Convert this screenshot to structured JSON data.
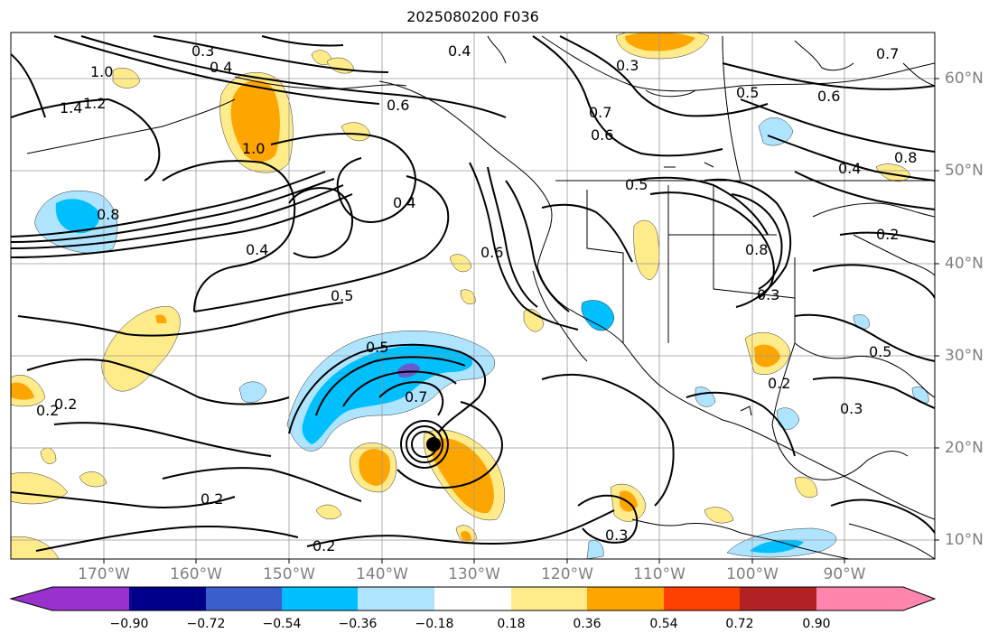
{
  "title": "2025080200 F036",
  "lon_labels": [
    "170°W",
    "160°W",
    "150°W",
    "140°W",
    "130°W",
    "120°W",
    "110°W",
    "100°W",
    "90°W"
  ],
  "lat_labels": [
    "60°N",
    "50°N",
    "40°N",
    "30°N",
    "20°N",
    "10°N"
  ],
  "contour_labels": [
    {
      "text": "0.3"
    },
    {
      "text": "0.4"
    },
    {
      "text": "1.0"
    },
    {
      "text": "1.2"
    },
    {
      "text": "1.4"
    },
    {
      "text": "0.4"
    },
    {
      "text": "0.3"
    },
    {
      "text": "0.6"
    },
    {
      "text": "0.7"
    },
    {
      "text": "0.5"
    },
    {
      "text": "0.6"
    },
    {
      "text": "0.6"
    },
    {
      "text": "1.0"
    },
    {
      "text": "0.7"
    },
    {
      "text": "0.5"
    },
    {
      "text": "0.4"
    },
    {
      "text": "0.8"
    },
    {
      "text": "0.4"
    },
    {
      "text": "0.5"
    },
    {
      "text": "0.6"
    },
    {
      "text": "0.8"
    },
    {
      "text": "0.3"
    },
    {
      "text": "0.5"
    },
    {
      "text": "0.7"
    },
    {
      "text": "0.4"
    },
    {
      "text": "0.8"
    },
    {
      "text": "0.2"
    },
    {
      "text": "0.5"
    },
    {
      "text": "0.2"
    },
    {
      "text": "0.2"
    },
    {
      "text": "0.3"
    },
    {
      "text": "0.2"
    },
    {
      "text": "0.2"
    },
    {
      "text": "0.3"
    },
    {
      "text": "0.2"
    }
  ],
  "colorbar": {
    "colors": [
      "#9932CC",
      "#00008B",
      "#3A5FCD",
      "#00BFFF",
      "#AEE4FF",
      "#FFFFFF",
      "#FFEB8A",
      "#FFA500",
      "#FF4000",
      "#B22222",
      "#FF85AD"
    ],
    "tick_labels": [
      "−0.90",
      "−0.72",
      "−0.54",
      "−0.36",
      "−0.18",
      "0.18",
      "0.36",
      "0.54",
      "0.72",
      "0.90"
    ]
  },
  "map_colors": {
    "blue_dark": "#00BFFF",
    "blue_light": "#AEE4FF",
    "orange": "#FFA500",
    "yellow": "#FFEB8A",
    "purple": "#6A5ACD"
  }
}
